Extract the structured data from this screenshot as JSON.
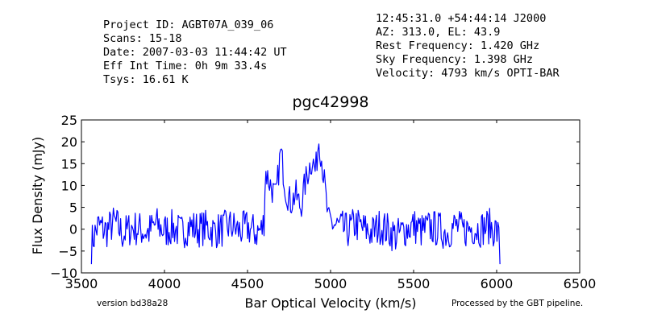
{
  "header": {
    "left_lines": [
      "Project ID: AGBT07A_039_06",
      "Scans: 15-18",
      "Date: 2007-03-03 11:44:42 UT",
      "Eff Int Time: 0h 9m 33.4s",
      "Tsys: 16.61 K"
    ],
    "right_lines": [
      "12:45:31.0 +54:44:14 J2000",
      "AZ: 313.0, EL: 43.9",
      "Rest Frequency:   1.420 GHz",
      "Sky Frequency:    1.398 GHz",
      "Velocity: 4793 km/s OPTI-BAR"
    ]
  },
  "footer": {
    "version": "version bd38a28",
    "processed": "Processed by the GBT pipeline."
  },
  "colors": {
    "line": "#0000ff",
    "processed_text": "#ff3333",
    "version_text": "#333333"
  },
  "chart_data": {
    "type": "line",
    "title": "pgc42998",
    "xlabel": "Bar Optical Velocity (km/s)",
    "ylabel": "Flux Density (mJy)",
    "xlim": [
      3500,
      6500
    ],
    "ylim": [
      -10,
      25
    ],
    "xticks": [
      3500,
      4000,
      4500,
      5000,
      5500,
      6000,
      6500
    ],
    "yticks": [
      -10,
      -5,
      0,
      5,
      10,
      15,
      20,
      25
    ],
    "grid": false,
    "series": [
      {
        "x": [
          3560,
          3600,
          3650,
          3700,
          3750,
          3800,
          3850,
          3900,
          3950,
          4000,
          4050,
          4100,
          4150,
          4200,
          4250,
          4300,
          4350,
          4400,
          4450,
          4500,
          4550,
          4590,
          4610,
          4640,
          4670,
          4700,
          4730,
          4760,
          4790,
          4820,
          4850,
          4870,
          4890,
          4910,
          4930,
          4950,
          4970,
          4985,
          5000,
          5050,
          5100,
          5150,
          5200,
          5250,
          5300,
          5350,
          5400,
          5450,
          5500,
          5550,
          5600,
          5650,
          5700,
          5750,
          5800,
          5850,
          5900,
          5950,
          6000,
          6020
        ],
        "y": [
          -8,
          2,
          -1,
          4,
          -3,
          1,
          0,
          -2,
          3,
          -1,
          1,
          -2,
          2,
          0,
          1,
          -1,
          0,
          2,
          -1,
          1,
          -2,
          0,
          13,
          10,
          7,
          18,
          9,
          6,
          8,
          5,
          11,
          14,
          16,
          13,
          21,
          15,
          8,
          2,
          4,
          1,
          -1,
          3,
          0,
          -2,
          2,
          -1,
          -4,
          0,
          2,
          -1,
          1,
          0,
          -2,
          2,
          -1,
          1,
          0,
          2,
          -1,
          -8
        ]
      }
    ]
  }
}
